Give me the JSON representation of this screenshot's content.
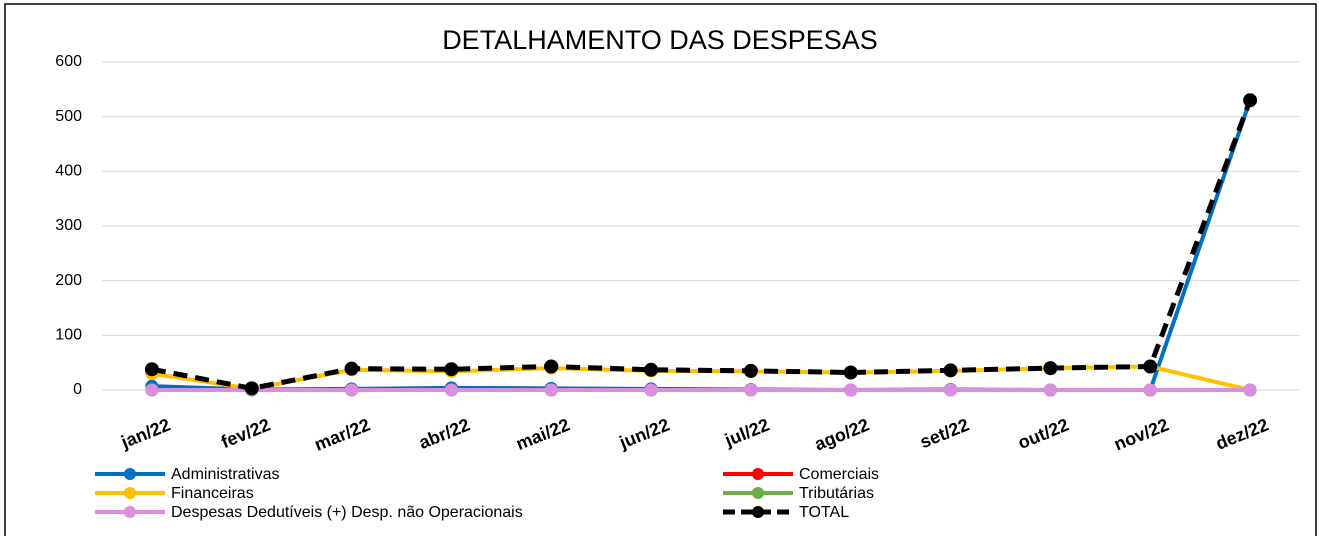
{
  "chart_data": {
    "type": "line",
    "title": "DETALHAMENTO DAS DESPESAS",
    "categories": [
      "jan/22",
      "fev/22",
      "mar/22",
      "abr/22",
      "mai/22",
      "jun/22",
      "jul/22",
      "ago/22",
      "set/22",
      "out/22",
      "nov/22",
      "dez/22"
    ],
    "series": [
      {
        "name": "Administrativas",
        "color": "#0070c0",
        "values": [
          7,
          1,
          2,
          4,
          3,
          2,
          1,
          0,
          1,
          0,
          0,
          530
        ]
      },
      {
        "name": "Comerciais",
        "color": "#ff0000",
        "values": [
          0,
          0,
          0,
          0,
          0,
          0,
          0,
          0,
          0,
          0,
          0,
          0
        ]
      },
      {
        "name": "Financeiras",
        "color": "#ffc000",
        "values": [
          30,
          2,
          37,
          34,
          40,
          35,
          34,
          32,
          35,
          40,
          43,
          0
        ]
      },
      {
        "name": "Tributárias",
        "color": "#70ad47",
        "values": [
          0,
          0,
          0,
          0,
          0,
          0,
          0,
          0,
          0,
          0,
          0,
          0
        ]
      },
      {
        "name": "Despesas Dedutíveis (+) Desp. não Operacionais",
        "color": "#d98ee0",
        "values": [
          0,
          0,
          0,
          0,
          0,
          0,
          0,
          0,
          0,
          0,
          0,
          0
        ]
      },
      {
        "name": "TOTAL",
        "color": "#000000",
        "dashed": true,
        "values": [
          38,
          3,
          39,
          38,
          43,
          37,
          35,
          32,
          36,
          40,
          43,
          530
        ]
      }
    ],
    "ylim": [
      0,
      600
    ],
    "yticks": [
      0,
      100,
      200,
      300,
      400,
      500,
      600
    ],
    "grid": true
  }
}
